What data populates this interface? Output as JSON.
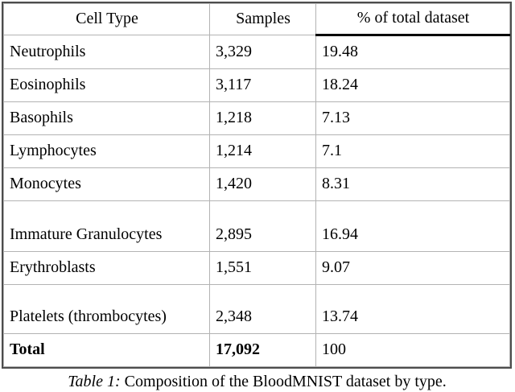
{
  "table": {
    "headers": {
      "cell_type": "Cell Type",
      "samples": "Samples",
      "percent": "% of total dataset"
    },
    "rows": [
      {
        "cell_type": "Neutrophils",
        "samples": "3,329",
        "percent": "19.48"
      },
      {
        "cell_type": "Eosinophils",
        "samples": "3,117",
        "percent": "18.24"
      },
      {
        "cell_type": "Basophils",
        "samples": "1,218",
        "percent": "7.13"
      },
      {
        "cell_type": "Lymphocytes",
        "samples": "1,214",
        "percent": "7.1"
      },
      {
        "cell_type": "Monocytes",
        "samples": "1,420",
        "percent": "8.31"
      },
      {
        "cell_type": "Immature Granulocytes",
        "samples": "2,895",
        "percent": "16.94"
      },
      {
        "cell_type": "Erythroblasts",
        "samples": "1,551",
        "percent": "9.07"
      },
      {
        "cell_type": "Platelets (thrombocytes)",
        "samples": "2,348",
        "percent": "13.74"
      }
    ],
    "total_row": {
      "cell_type": "Total",
      "samples": "17,092",
      "percent": "100"
    }
  },
  "caption": {
    "label": "Table 1:",
    "text": "Composition of the BloodMNIST dataset by type."
  },
  "colors": {
    "grid_line": "#b3b3b3",
    "outer_border": "#4d4d4d",
    "header_rule": "#000000",
    "text": "#000000",
    "background": "#ffffff"
  }
}
